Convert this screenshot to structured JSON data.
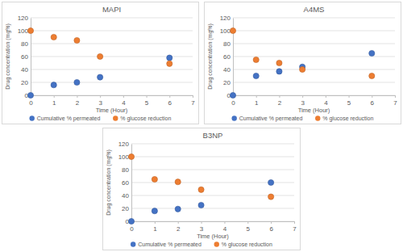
{
  "chart_data": [
    {
      "type": "scatter",
      "title": "MAPI",
      "x_label": "Time (Hour)",
      "y_label": "Drug concentration (mg%)",
      "x": [
        0,
        1,
        2,
        3,
        6
      ],
      "series": [
        {
          "name": "Cumulative % permeated",
          "color": "#4472c4",
          "marker": "circle",
          "values": [
            0,
            16,
            20,
            28,
            58
          ]
        },
        {
          "name": "% glucose reduction",
          "color": "#ed7d31",
          "marker": "circle",
          "values": [
            100,
            90,
            85,
            60,
            49
          ]
        }
      ],
      "xlim": [
        0,
        7
      ],
      "xticks": [
        0,
        1,
        2,
        3,
        4,
        5,
        6,
        7
      ],
      "ylim": [
        0,
        120
      ],
      "yticks": [
        0,
        20,
        40,
        60,
        80,
        100,
        120
      ],
      "grid": true,
      "legend": "bottom"
    },
    {
      "type": "scatter",
      "title": "A4MS",
      "x_label": "Time (Hour)",
      "y_label": "Drug concentration (mg%)",
      "x": [
        0,
        1,
        2,
        3,
        6
      ],
      "series": [
        {
          "name": "Cumulative % permeated",
          "color": "#4472c4",
          "marker": "circle",
          "values": [
            0,
            30,
            37,
            44,
            65
          ]
        },
        {
          "name": "% glucose reduction",
          "color": "#ed7d31",
          "marker": "circle",
          "values": [
            100,
            55,
            50,
            40,
            30
          ]
        }
      ],
      "xlim": [
        0,
        7
      ],
      "xticks": [
        0,
        1,
        2,
        3,
        4,
        5,
        6,
        7
      ],
      "ylim": [
        0,
        120
      ],
      "yticks": [
        0,
        20,
        40,
        60,
        80,
        100,
        120
      ],
      "grid": true,
      "legend": "bottom"
    },
    {
      "type": "scatter",
      "title": "B3NP",
      "x_label": "Time (Hour)",
      "y_label": "Drug concentration (mg%)",
      "x": [
        0,
        1,
        2,
        3,
        6
      ],
      "series": [
        {
          "name": "Cumulative % permeated",
          "color": "#4472c4",
          "marker": "circle",
          "values": [
            0,
            16,
            19,
            25,
            60
          ]
        },
        {
          "name": "% glucose reduction",
          "color": "#ed7d31",
          "marker": "circle",
          "values": [
            100,
            65,
            61,
            49,
            38
          ]
        }
      ],
      "xlim": [
        0,
        7
      ],
      "xticks": [
        0,
        1,
        2,
        3,
        4,
        5,
        6,
        7
      ],
      "ylim": [
        0,
        120
      ],
      "yticks": [
        0,
        20,
        40,
        60,
        80,
        100,
        120
      ],
      "grid": true,
      "legend": "bottom"
    }
  ]
}
